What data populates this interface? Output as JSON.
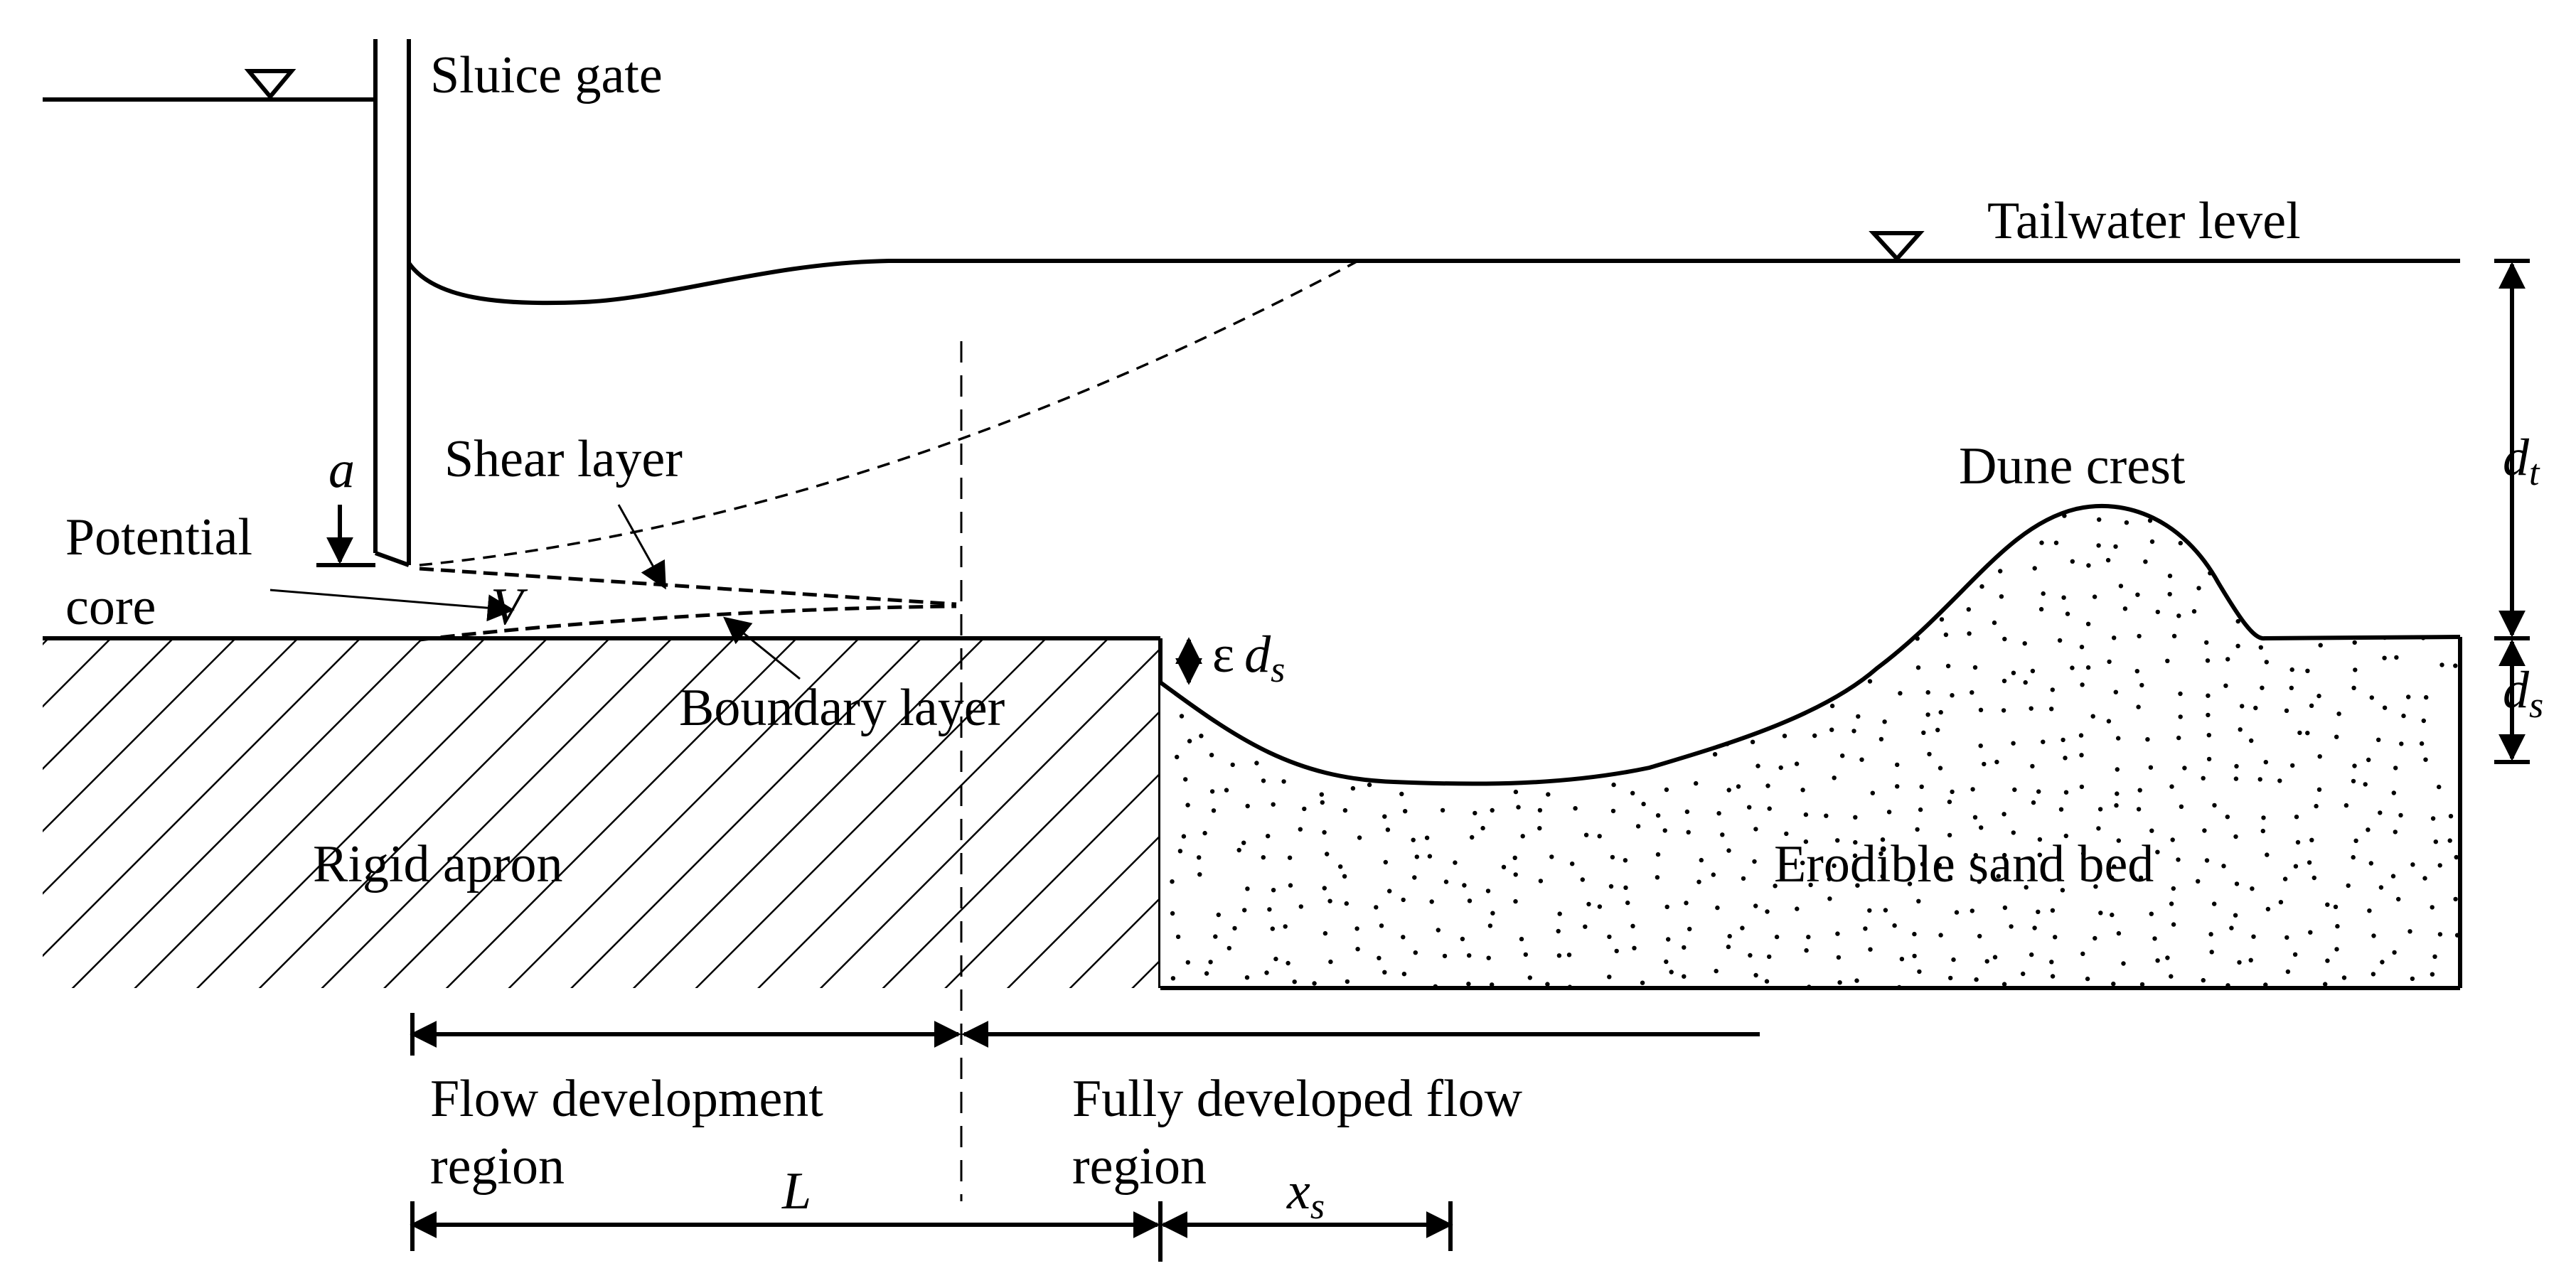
{
  "labels": {
    "sluice_gate": "Sluice gate",
    "tailwater_level": "Tailwater level",
    "gate_opening": "a",
    "shear_layer": "Shear layer",
    "potential_core_line1": "Potential",
    "potential_core_line2": "core",
    "jet_velocity": "V",
    "dune_crest": "Dune crest",
    "tailwater_depth_sym": "d",
    "tailwater_depth_sub": "t",
    "scour_depth_sym": "d",
    "scour_depth_sub": "s",
    "epsilon_sym": "ε",
    "epsilon_d": "d",
    "epsilon_sub": "s",
    "boundary_layer": "Boundary layer",
    "rigid_apron": "Rigid apron",
    "erodible_sand_bed": "Erodible sand bed",
    "flow_development_line1": "Flow development",
    "flow_development_line2": "region",
    "fully_developed_line1": "Fully developed flow",
    "fully_developed_line2": "region",
    "apron_length": "L",
    "xs_sym": "x",
    "xs_sub": "s"
  }
}
